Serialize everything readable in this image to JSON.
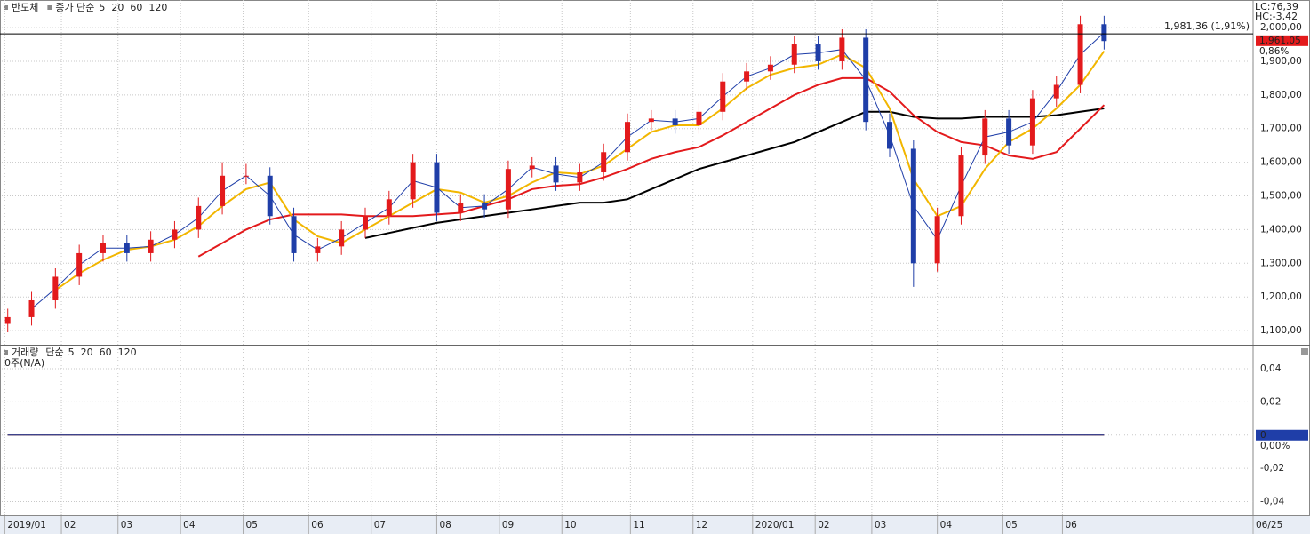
{
  "chart_data": [
    {
      "type": "candlestick",
      "title": "반도체",
      "legend_label": "종가 단순",
      "x": [
        2,
        10,
        18,
        26,
        34,
        42,
        50,
        58,
        66,
        74,
        82,
        90,
        98,
        106,
        114,
        122,
        130,
        138,
        146,
        154,
        162,
        170,
        178,
        186,
        194,
        202,
        210,
        218,
        226,
        234,
        242,
        250,
        258,
        266,
        274,
        282,
        290,
        298,
        306,
        314,
        322,
        330,
        338,
        346,
        354,
        362,
        370
      ],
      "open": [
        1120,
        1140,
        1190,
        1260,
        1330,
        1360,
        1330,
        1370,
        1400,
        1470,
        1560,
        1560,
        1440,
        1330,
        1350,
        1400,
        1440,
        1490,
        1600,
        1450,
        1480,
        1460,
        1580,
        1590,
        1540,
        1570,
        1630,
        1720,
        1730,
        1710,
        1750,
        1840,
        1870,
        1890,
        1950,
        1900,
        1970,
        1720,
        1640,
        1300,
        1440,
        1620,
        1730,
        1650,
        1790,
        1830,
        2010
      ],
      "high": [
        1165,
        1215,
        1285,
        1355,
        1385,
        1385,
        1395,
        1425,
        1495,
        1600,
        1595,
        1585,
        1465,
        1375,
        1425,
        1465,
        1515,
        1625,
        1625,
        1505,
        1505,
        1605,
        1615,
        1615,
        1595,
        1655,
        1745,
        1755,
        1755,
        1775,
        1865,
        1895,
        1915,
        1975,
        1975,
        1995,
        1995,
        1745,
        1665,
        1465,
        1645,
        1755,
        1755,
        1815,
        1855,
        2035,
        2035
      ],
      "low": [
        1095,
        1115,
        1165,
        1235,
        1305,
        1305,
        1305,
        1345,
        1375,
        1445,
        1535,
        1415,
        1305,
        1305,
        1325,
        1375,
        1415,
        1465,
        1425,
        1425,
        1435,
        1435,
        1555,
        1515,
        1515,
        1545,
        1605,
        1695,
        1685,
        1685,
        1725,
        1815,
        1845,
        1865,
        1875,
        1875,
        1695,
        1615,
        1230,
        1275,
        1415,
        1595,
        1625,
        1625,
        1765,
        1805,
        1935
      ],
      "close": [
        1140,
        1190,
        1260,
        1330,
        1360,
        1330,
        1370,
        1400,
        1470,
        1560,
        1560,
        1440,
        1330,
        1350,
        1400,
        1440,
        1490,
        1600,
        1450,
        1480,
        1460,
        1580,
        1590,
        1540,
        1570,
        1630,
        1720,
        1730,
        1710,
        1750,
        1840,
        1870,
        1890,
        1950,
        1900,
        1970,
        1720,
        1640,
        1300,
        1440,
        1620,
        1730,
        1650,
        1790,
        1830,
        2010,
        1960
      ],
      "up_color": "#e31a1c",
      "down_color": "#1f3ea8",
      "series": [
        {
          "name": "5",
          "color": "#1f3ea8",
          "values": [
            null,
            1165,
            1225,
            1295,
            1345,
            1345,
            1350,
            1385,
            1435,
            1515,
            1560,
            1500,
            1385,
            1340,
            1375,
            1420,
            1465,
            1545,
            1525,
            1465,
            1470,
            1520,
            1585,
            1565,
            1555,
            1600,
            1675,
            1725,
            1720,
            1730,
            1795,
            1855,
            1880,
            1920,
            1925,
            1935,
            1845,
            1680,
            1470,
            1370,
            1530,
            1675,
            1690,
            1720,
            1810,
            1920,
            1985
          ]
        },
        {
          "name": "20",
          "color": "#f2b600",
          "values": [
            null,
            null,
            1220,
            1270,
            1310,
            1340,
            1350,
            1370,
            1410,
            1470,
            1520,
            1540,
            1430,
            1380,
            1360,
            1400,
            1440,
            1480,
            1520,
            1510,
            1480,
            1500,
            1540,
            1570,
            1565,
            1590,
            1640,
            1690,
            1710,
            1710,
            1760,
            1820,
            1860,
            1880,
            1890,
            1920,
            1880,
            1760,
            1550,
            1440,
            1470,
            1580,
            1660,
            1700,
            1760,
            1830,
            1930
          ]
        },
        {
          "name": "60",
          "color": "#e31a1c",
          "values": [
            null,
            null,
            null,
            null,
            null,
            null,
            null,
            null,
            1320,
            1360,
            1400,
            1430,
            1445,
            1445,
            1445,
            1440,
            1440,
            1440,
            1445,
            1450,
            1470,
            1490,
            1520,
            1530,
            1535,
            1555,
            1580,
            1610,
            1630,
            1645,
            1680,
            1720,
            1760,
            1800,
            1830,
            1850,
            1850,
            1810,
            1740,
            1690,
            1660,
            1650,
            1620,
            1610,
            1630,
            1700,
            1770
          ]
        },
        {
          "name": "120",
          "color": "#000000",
          "values": [
            null,
            null,
            null,
            null,
            null,
            null,
            null,
            null,
            null,
            null,
            null,
            null,
            null,
            null,
            null,
            1375,
            1390,
            1405,
            1420,
            1430,
            1440,
            1450,
            1460,
            1470,
            1480,
            1480,
            1490,
            1520,
            1550,
            1580,
            1600,
            1620,
            1640,
            1660,
            1690,
            1720,
            1750,
            1750,
            1735,
            1730,
            1730,
            1735,
            1735,
            1735,
            1740,
            1750,
            1760
          ]
        }
      ],
      "xlim": [
        0,
        420
      ],
      "ylim": [
        1058,
        2082
      ],
      "yticks": [
        {
          "value": 1100,
          "label": "1,100,00"
        },
        {
          "value": 1200,
          "label": "1,200,00"
        },
        {
          "value": 1300,
          "label": "1,300,00"
        },
        {
          "value": 1400,
          "label": "1,400,00"
        },
        {
          "value": 1500,
          "label": "1,500,00"
        },
        {
          "value": 1600,
          "label": "1,600,00"
        },
        {
          "value": 1700,
          "label": "1,700,00"
        },
        {
          "value": 1800,
          "label": "1,800,00"
        },
        {
          "value": 1900,
          "label": "1,900,00"
        },
        {
          "value": 2000,
          "label": "2,000,00"
        }
      ],
      "reference_line": {
        "value": 1981.36,
        "label": "1,981,36 (1,91%)"
      },
      "last_price": {
        "value": 1961.05,
        "label": "1,961,05"
      },
      "change_label": "0,86%",
      "lc_label": "LC:76,39",
      "hc_label": "HC:-3,42",
      "grid": true
    },
    {
      "type": "line",
      "title": "거래량",
      "legend_label": "단순",
      "unit_label": "0주(N/A)",
      "series": [
        {
          "name": "5",
          "color": "#1f3ea8",
          "x": [
            2,
            370
          ],
          "values": [
            0,
            0
          ]
        },
        {
          "name": "20",
          "color": "#e31a1c",
          "x": [
            2,
            370
          ],
          "values": [
            0,
            0
          ]
        },
        {
          "name": "60",
          "color": "#2e9a2e",
          "x": [
            2,
            370
          ],
          "values": [
            0,
            0
          ]
        },
        {
          "name": "120",
          "color": "#000000",
          "x": [
            2,
            370
          ],
          "values": [
            0,
            0
          ]
        }
      ],
      "xlim": [
        0,
        420
      ],
      "ylim": [
        -0.0483,
        0.0534
      ],
      "yticks": [
        {
          "value": 0.04,
          "label": "0,04"
        },
        {
          "value": 0.02,
          "label": "0,02"
        },
        0,
        {
          "value": -0.02,
          "label": "-0,02"
        },
        {
          "value": -0.04,
          "label": "-0,04"
        }
      ],
      "zero_percent_label": "0,00%",
      "xticks": [
        {
          "value": 1,
          "label": "2019/01"
        },
        {
          "value": 20,
          "label": "02"
        },
        {
          "value": 39,
          "label": "03"
        },
        {
          "value": 60,
          "label": "04"
        },
        {
          "value": 81,
          "label": "05"
        },
        {
          "value": 103,
          "label": "06"
        },
        {
          "value": 124,
          "label": "07"
        },
        {
          "value": 146,
          "label": "08"
        },
        {
          "value": 167,
          "label": "09"
        },
        {
          "value": 188,
          "label": "10"
        },
        {
          "value": 211,
          "label": "11"
        },
        {
          "value": 232,
          "label": "12"
        },
        {
          "value": 252,
          "label": "2020/01"
        },
        {
          "value": 273,
          "label": "02"
        },
        {
          "value": 292,
          "label": "03"
        },
        {
          "value": 314,
          "label": "04"
        },
        {
          "value": 336,
          "label": "05"
        },
        {
          "value": 356,
          "label": "06"
        },
        {
          "value": 420,
          "label": "06/25"
        }
      ],
      "grid": true
    }
  ]
}
